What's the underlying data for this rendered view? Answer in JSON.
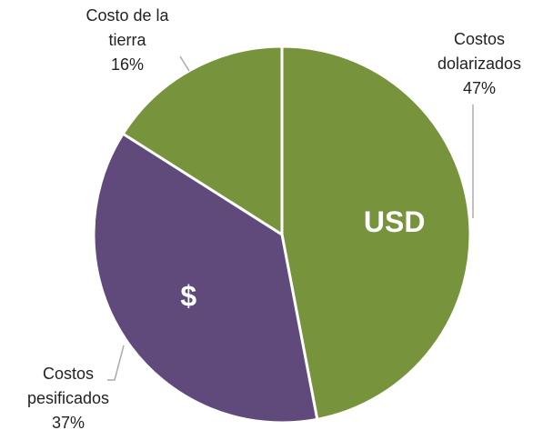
{
  "chart_data": {
    "type": "pie",
    "categories": [
      "Costos dolarizados",
      "Costos pesificados",
      "Costo de la tierra"
    ],
    "values": [
      47,
      37,
      16
    ],
    "value_labels": [
      "47%",
      "37%",
      "16%"
    ],
    "colors": [
      "#77933c",
      "#604a7b",
      "#77933c"
    ],
    "slice_labels": [
      "USD",
      "$",
      null
    ]
  }
}
